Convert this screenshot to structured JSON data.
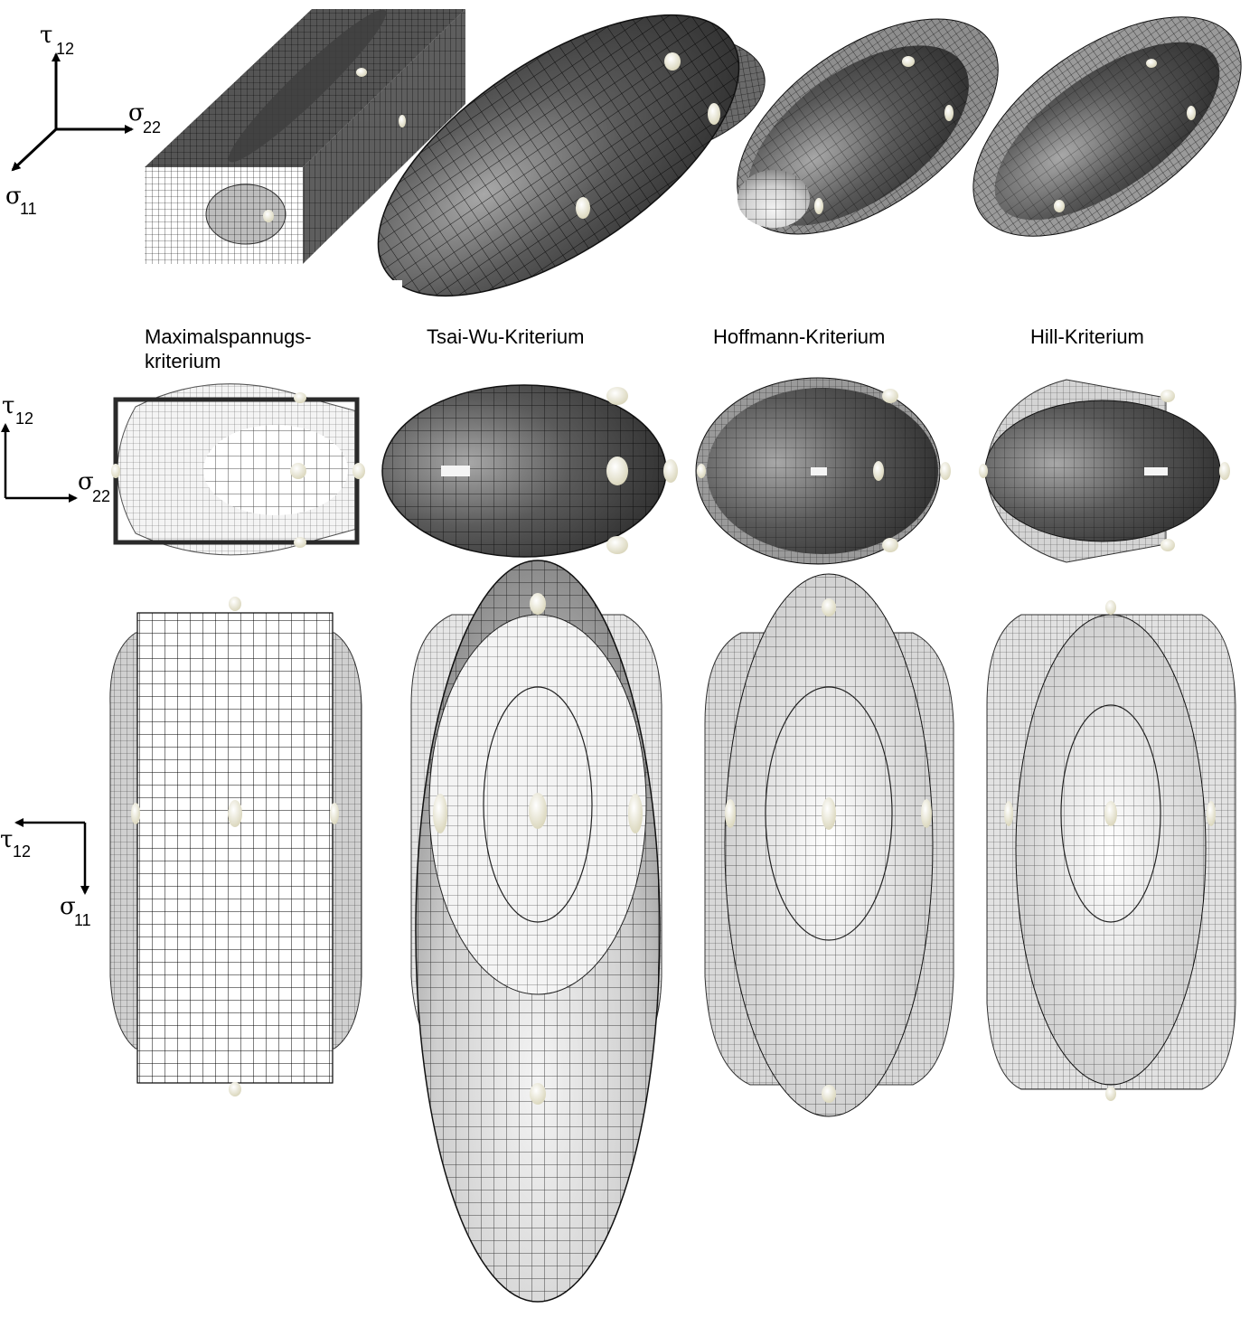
{
  "criteria": [
    {
      "label_line1": "Maximalspannugs-",
      "label_line2": "kriterium"
    },
    {
      "label_line1": "Tsai-Wu-Kriterium",
      "label_line2": ""
    },
    {
      "label_line1": "Hoffmann-Kriterium",
      "label_line2": ""
    },
    {
      "label_line1": "Hill-Kriterium",
      "label_line2": ""
    }
  ],
  "axes": {
    "iso": {
      "up": {
        "sym": "τ",
        "sub": "12"
      },
      "right": {
        "sym": "σ",
        "sub": "22"
      },
      "diag": {
        "sym": "σ",
        "sub": "11"
      }
    },
    "top": {
      "up": {
        "sym": "τ",
        "sub": "12"
      },
      "right": {
        "sym": "σ",
        "sub": "22"
      }
    },
    "side": {
      "left": {
        "sym": "τ",
        "sub": "12"
      },
      "down": {
        "sym": "σ",
        "sub": "11"
      }
    }
  },
  "colors": {
    "surface_dark": "#4a4a4a",
    "surface_mid": "#8c8c8c",
    "surface_light": "#dcdcdc",
    "mesh": "#000000",
    "marker": "#f2f0dc"
  }
}
